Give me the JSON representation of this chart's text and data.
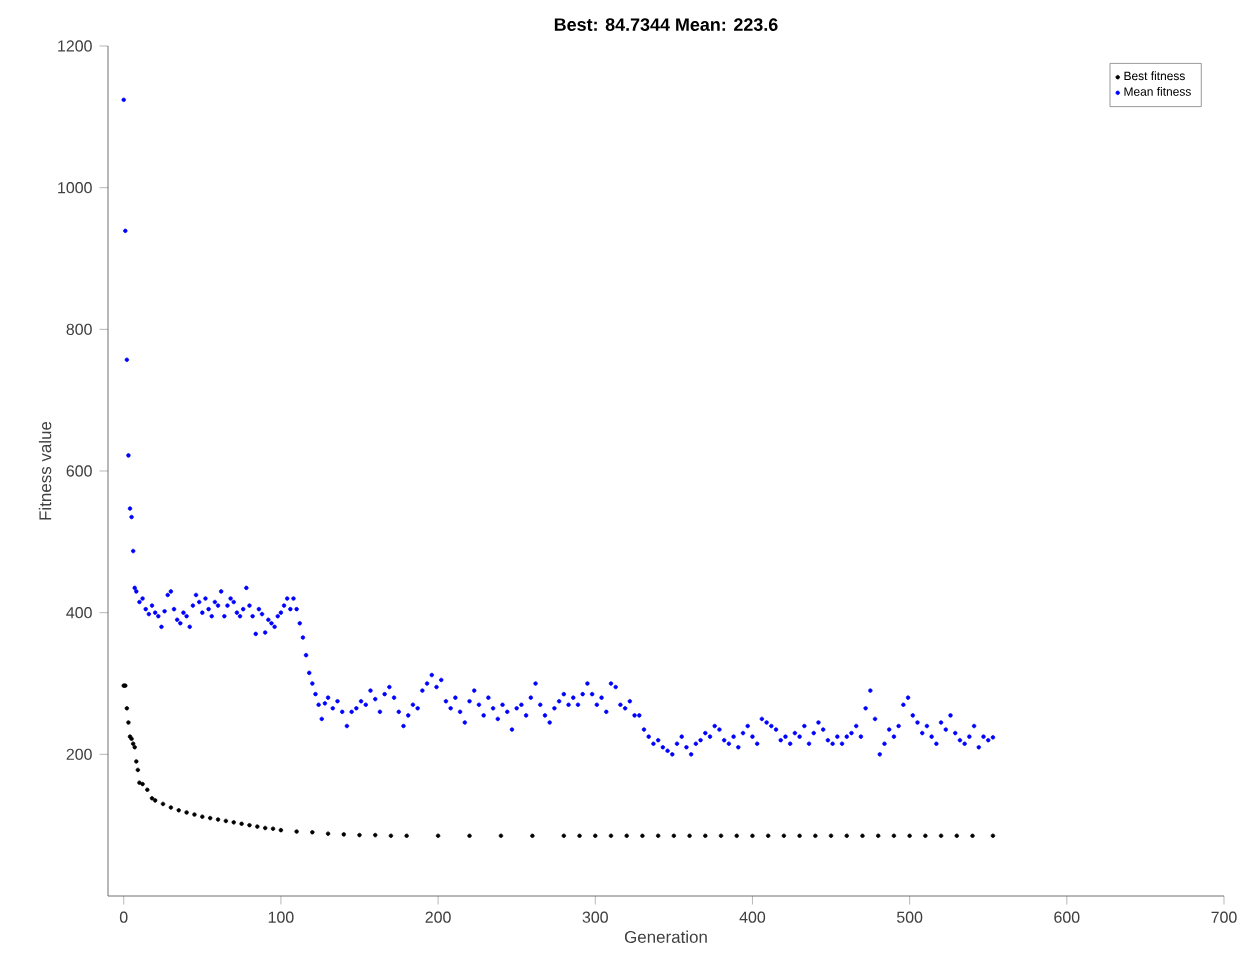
{
  "chart_data": {
    "type": "scatter",
    "title": "Best: 84.7344 Mean: 223.6",
    "xlabel": "Generation",
    "ylabel": "Fitness value",
    "xlim": [
      -10,
      700
    ],
    "ylim": [
      0,
      1200
    ],
    "xticks": [
      0,
      100,
      200,
      300,
      400,
      500,
      600,
      700
    ],
    "yticks": [
      200,
      400,
      600,
      800,
      1000,
      1200
    ],
    "legend": "top right",
    "marker": "circle",
    "grid": false,
    "series": [
      {
        "name": "Best fitness",
        "color": "#000000",
        "x": [
          0,
          1,
          2,
          3,
          4,
          5,
          6,
          7,
          8,
          9,
          10,
          12,
          15,
          18,
          20,
          25,
          30,
          35,
          40,
          45,
          50,
          55,
          60,
          65,
          70,
          75,
          80,
          85,
          90,
          95,
          100,
          110,
          120,
          130,
          140,
          150,
          160,
          170,
          180,
          200,
          220,
          240,
          260,
          280,
          290,
          300,
          310,
          320,
          330,
          340,
          350,
          360,
          370,
          380,
          390,
          400,
          410,
          420,
          430,
          440,
          450,
          460,
          470,
          480,
          490,
          500,
          510,
          520,
          530,
          540,
          553
        ],
        "values": [
          297,
          297,
          265,
          245,
          225,
          222,
          215,
          210,
          190,
          178,
          160,
          158,
          150,
          138,
          135,
          130,
          125,
          121,
          118,
          115,
          112,
          110,
          108,
          106,
          104,
          102,
          100,
          98,
          96,
          95,
          93,
          91,
          90,
          88,
          87,
          86,
          86,
          85,
          85,
          85,
          85,
          85,
          85,
          85,
          85,
          85,
          85,
          85,
          85,
          85,
          85,
          85,
          85,
          85,
          85,
          85,
          85,
          85,
          85,
          85,
          85,
          85,
          85,
          85,
          85,
          85,
          85,
          85,
          85,
          85,
          85
        ]
      },
      {
        "name": "Mean fitness",
        "color": "#0000ff",
        "x": [
          0,
          1,
          2,
          3,
          4,
          5,
          6,
          7,
          8,
          10,
          12,
          14,
          16,
          18,
          20,
          22,
          24,
          26,
          28,
          30,
          32,
          34,
          36,
          38,
          40,
          42,
          44,
          46,
          48,
          50,
          52,
          54,
          56,
          58,
          60,
          62,
          64,
          66,
          68,
          70,
          72,
          74,
          76,
          78,
          80,
          82,
          84,
          86,
          88,
          90,
          92,
          94,
          96,
          98,
          100,
          102,
          104,
          106,
          108,
          110,
          112,
          114,
          116,
          118,
          120,
          122,
          124,
          126,
          128,
          130,
          133,
          136,
          139,
          142,
          145,
          148,
          151,
          154,
          157,
          160,
          163,
          166,
          169,
          172,
          175,
          178,
          181,
          184,
          187,
          190,
          193,
          196,
          199,
          202,
          205,
          208,
          211,
          214,
          217,
          220,
          223,
          226,
          229,
          232,
          235,
          238,
          241,
          244,
          247,
          250,
          253,
          256,
          259,
          262,
          265,
          268,
          271,
          274,
          277,
          280,
          283,
          286,
          289,
          292,
          295,
          298,
          301,
          304,
          307,
          310,
          313,
          316,
          319,
          322,
          325,
          328,
          331,
          334,
          337,
          340,
          343,
          346,
          349,
          352,
          355,
          358,
          361,
          364,
          367,
          370,
          373,
          376,
          379,
          382,
          385,
          388,
          391,
          394,
          397,
          400,
          403,
          406,
          409,
          412,
          415,
          418,
          421,
          424,
          427,
          430,
          433,
          436,
          439,
          442,
          445,
          448,
          451,
          454,
          457,
          460,
          463,
          466,
          469,
          472,
          475,
          478,
          481,
          484,
          487,
          490,
          493,
          496,
          499,
          502,
          505,
          508,
          511,
          514,
          517,
          520,
          523,
          526,
          529,
          532,
          535,
          538,
          541,
          544,
          547,
          550,
          553
        ],
        "values": [
          1124,
          939,
          757,
          622,
          547,
          535,
          487,
          435,
          430,
          415,
          420,
          405,
          398,
          410,
          400,
          395,
          380,
          402,
          425,
          430,
          405,
          390,
          385,
          400,
          395,
          380,
          410,
          425,
          415,
          400,
          420,
          405,
          395,
          415,
          410,
          430,
          395,
          410,
          420,
          415,
          400,
          395,
          405,
          435,
          410,
          395,
          370,
          405,
          398,
          372,
          390,
          385,
          380,
          395,
          400,
          410,
          420,
          405,
          420,
          405,
          385,
          365,
          340,
          315,
          300,
          285,
          270,
          250,
          272,
          280,
          265,
          275,
          260,
          240,
          260,
          265,
          275,
          270,
          290,
          278,
          260,
          285,
          295,
          280,
          260,
          240,
          255,
          270,
          265,
          290,
          300,
          312,
          295,
          305,
          275,
          265,
          280,
          260,
          245,
          275,
          290,
          270,
          255,
          280,
          265,
          250,
          270,
          260,
          235,
          265,
          270,
          255,
          280,
          300,
          270,
          255,
          245,
          265,
          275,
          285,
          270,
          280,
          270,
          285,
          300,
          285,
          270,
          280,
          260,
          300,
          295,
          270,
          265,
          275,
          255,
          255,
          235,
          225,
          215,
          220,
          210,
          205,
          200,
          215,
          225,
          210,
          200,
          215,
          220,
          230,
          225,
          240,
          235,
          220,
          215,
          225,
          210,
          230,
          240,
          225,
          215,
          250,
          245,
          240,
          235,
          220,
          225,
          215,
          230,
          225,
          240,
          215,
          230,
          245,
          235,
          220,
          215,
          225,
          215,
          225,
          230,
          240,
          225,
          265,
          290,
          250,
          200,
          215,
          235,
          225,
          240,
          270,
          280,
          255,
          245,
          230,
          240,
          225,
          215,
          245,
          235,
          255,
          230,
          220,
          215,
          225,
          240,
          210,
          225,
          220,
          224
        ]
      }
    ]
  }
}
